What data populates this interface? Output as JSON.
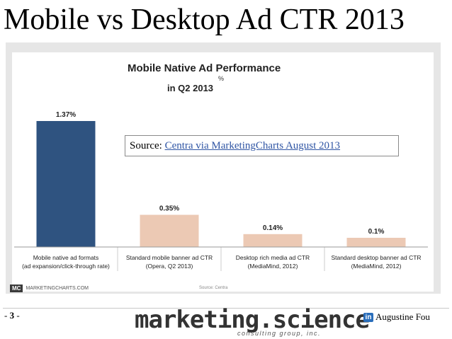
{
  "slide": {
    "title": "Mobile vs Desktop Ad CTR 2013",
    "page_prefix": "- ",
    "page_number": "3",
    "page_suffix": " -",
    "brand_main": "marketing.science",
    "brand_sub": "consulting group, inc.",
    "linkedin_icon": "in",
    "author": "Augustine Fou"
  },
  "source_note": {
    "label": "Source: ",
    "link_text": "Centra via MarketingCharts August 2013"
  },
  "chart_data": {
    "type": "bar",
    "title": "Mobile Native Ad Performance",
    "unit": "%",
    "subtitle": "in Q2 2013",
    "categories": [
      [
        "Mobile native ad formats",
        "(ad expansion/click-through rate)"
      ],
      [
        "Standard mobile banner ad CTR",
        "(Opera, Q2 2013)"
      ],
      [
        "Desktop rich media ad CTR",
        "(MediaMind, 2012)"
      ],
      [
        "Standard desktop banner ad CTR",
        "(MediaMind, 2012)"
      ]
    ],
    "values": [
      1.37,
      0.35,
      0.14,
      0.1
    ],
    "value_labels": [
      "1.37%",
      "0.35%",
      "0.14%",
      "0.1%"
    ],
    "colors": [
      "#2f5380",
      "#ecc9b4",
      "#ecc9b4",
      "#ecc9b4"
    ],
    "ylim": [
      0,
      1.37
    ],
    "footer_brand": "MARKETINGCHARTS.COM",
    "footer_logo": "MC",
    "footer_source": "Source: Centra"
  }
}
